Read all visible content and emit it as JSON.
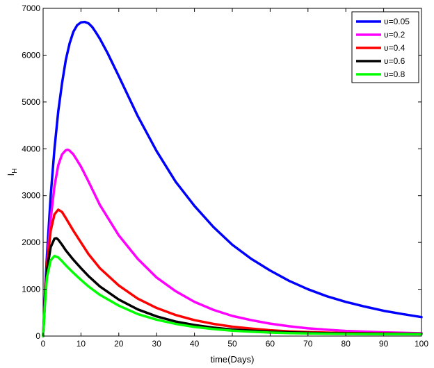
{
  "chart_data": {
    "type": "line",
    "title": "",
    "xlabel": "time(Days)",
    "ylabel_main": "I",
    "ylabel_sub": "H",
    "xlim": [
      0,
      100
    ],
    "ylim": [
      0,
      7000
    ],
    "xticks": [
      0,
      10,
      20,
      30,
      40,
      50,
      60,
      70,
      80,
      90,
      100
    ],
    "yticks": [
      0,
      1000,
      2000,
      3000,
      4000,
      5000,
      6000,
      7000
    ],
    "grid": false,
    "legend_position": "top-right",
    "series": [
      {
        "name": "υ=0.05",
        "color": "#0000ff",
        "points": [
          [
            0,
            0
          ],
          [
            0.5,
            900
          ],
          [
            1,
            1700
          ],
          [
            2,
            3000
          ],
          [
            3,
            4000
          ],
          [
            4,
            4800
          ],
          [
            5,
            5400
          ],
          [
            6,
            5900
          ],
          [
            7,
            6250
          ],
          [
            8,
            6500
          ],
          [
            9,
            6640
          ],
          [
            10,
            6700
          ],
          [
            11,
            6710
          ],
          [
            12,
            6680
          ],
          [
            13,
            6600
          ],
          [
            14,
            6480
          ],
          [
            15,
            6350
          ],
          [
            17,
            6050
          ],
          [
            20,
            5550
          ],
          [
            25,
            4700
          ],
          [
            30,
            3950
          ],
          [
            35,
            3300
          ],
          [
            40,
            2780
          ],
          [
            45,
            2330
          ],
          [
            50,
            1950
          ],
          [
            55,
            1650
          ],
          [
            60,
            1400
          ],
          [
            65,
            1180
          ],
          [
            70,
            1000
          ],
          [
            75,
            850
          ],
          [
            80,
            730
          ],
          [
            85,
            630
          ],
          [
            90,
            540
          ],
          [
            95,
            470
          ],
          [
            100,
            405
          ]
        ]
      },
      {
        "name": "υ=0.2",
        "color": "#ff00ff",
        "points": [
          [
            0,
            0
          ],
          [
            0.5,
            800
          ],
          [
            1,
            1500
          ],
          [
            2,
            2500
          ],
          [
            3,
            3200
          ],
          [
            4,
            3650
          ],
          [
            5,
            3880
          ],
          [
            6,
            3970
          ],
          [
            6.5,
            3980
          ],
          [
            7,
            3960
          ],
          [
            8,
            3880
          ],
          [
            10,
            3620
          ],
          [
            12,
            3300
          ],
          [
            15,
            2800
          ],
          [
            20,
            2150
          ],
          [
            25,
            1650
          ],
          [
            30,
            1250
          ],
          [
            35,
            960
          ],
          [
            40,
            730
          ],
          [
            45,
            560
          ],
          [
            50,
            430
          ],
          [
            55,
            340
          ],
          [
            60,
            265
          ],
          [
            65,
            210
          ],
          [
            70,
            165
          ],
          [
            75,
            135
          ],
          [
            80,
            110
          ],
          [
            85,
            95
          ],
          [
            90,
            80
          ],
          [
            95,
            70
          ],
          [
            100,
            60
          ]
        ]
      },
      {
        "name": "υ=0.4",
        "color": "#ff0000",
        "points": [
          [
            0,
            0
          ],
          [
            0.5,
            800
          ],
          [
            1,
            1500
          ],
          [
            2,
            2250
          ],
          [
            3,
            2600
          ],
          [
            4,
            2700
          ],
          [
            5,
            2650
          ],
          [
            6,
            2520
          ],
          [
            8,
            2250
          ],
          [
            10,
            2000
          ],
          [
            12,
            1750
          ],
          [
            15,
            1450
          ],
          [
            20,
            1080
          ],
          [
            25,
            800
          ],
          [
            30,
            600
          ],
          [
            35,
            450
          ],
          [
            40,
            340
          ],
          [
            45,
            260
          ],
          [
            50,
            200
          ],
          [
            55,
            160
          ],
          [
            60,
            125
          ],
          [
            65,
            100
          ],
          [
            70,
            85
          ],
          [
            75,
            75
          ],
          [
            80,
            65
          ],
          [
            85,
            60
          ],
          [
            90,
            55
          ],
          [
            95,
            52
          ],
          [
            100,
            50
          ]
        ]
      },
      {
        "name": "υ=0.6",
        "color": "#000000",
        "points": [
          [
            0,
            0
          ],
          [
            0.5,
            750
          ],
          [
            1,
            1400
          ],
          [
            2,
            1900
          ],
          [
            3,
            2080
          ],
          [
            3.5,
            2090
          ],
          [
            4,
            2060
          ],
          [
            5,
            1950
          ],
          [
            6,
            1830
          ],
          [
            8,
            1630
          ],
          [
            10,
            1450
          ],
          [
            12,
            1280
          ],
          [
            15,
            1060
          ],
          [
            20,
            780
          ],
          [
            25,
            570
          ],
          [
            30,
            420
          ],
          [
            35,
            310
          ],
          [
            40,
            235
          ],
          [
            45,
            180
          ],
          [
            50,
            140
          ],
          [
            55,
            115
          ],
          [
            60,
            95
          ],
          [
            65,
            80
          ],
          [
            70,
            70
          ],
          [
            75,
            62
          ],
          [
            80,
            57
          ],
          [
            85,
            53
          ],
          [
            90,
            50
          ],
          [
            95,
            48
          ],
          [
            100,
            46
          ]
        ]
      },
      {
        "name": "υ=0.8",
        "color": "#00ff00",
        "points": [
          [
            0,
            0
          ],
          [
            0.5,
            700
          ],
          [
            1,
            1250
          ],
          [
            2,
            1620
          ],
          [
            3,
            1710
          ],
          [
            4,
            1680
          ],
          [
            5,
            1600
          ],
          [
            6,
            1510
          ],
          [
            8,
            1350
          ],
          [
            10,
            1200
          ],
          [
            12,
            1060
          ],
          [
            15,
            880
          ],
          [
            20,
            650
          ],
          [
            25,
            470
          ],
          [
            30,
            350
          ],
          [
            35,
            260
          ],
          [
            40,
            195
          ],
          [
            45,
            150
          ],
          [
            50,
            115
          ],
          [
            55,
            92
          ],
          [
            60,
            75
          ],
          [
            65,
            63
          ],
          [
            70,
            55
          ],
          [
            75,
            50
          ],
          [
            80,
            46
          ],
          [
            85,
            43
          ],
          [
            90,
            41
          ],
          [
            95,
            40
          ],
          [
            100,
            39
          ]
        ]
      }
    ]
  }
}
